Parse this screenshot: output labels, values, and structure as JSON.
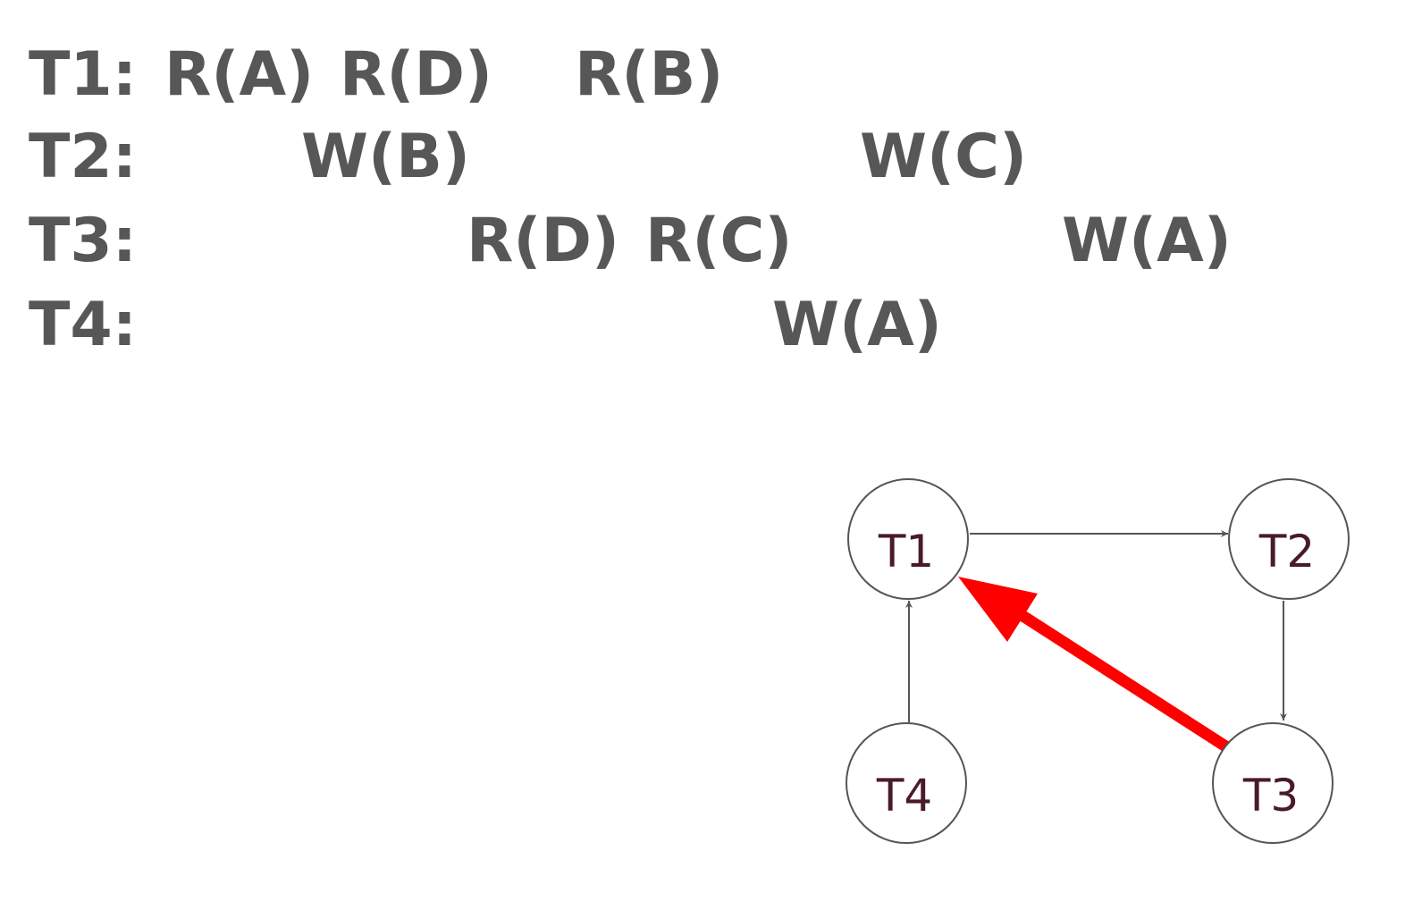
{
  "schedule": {
    "rows": [
      {
        "label": "T1:",
        "ops": [
          "R(A)",
          "R(D)",
          "R(B)"
        ]
      },
      {
        "label": "T2:",
        "ops": [
          "W(B)",
          "W(C)"
        ]
      },
      {
        "label": "T3:",
        "ops": [
          "R(D)",
          "R(C)",
          "W(A)"
        ]
      },
      {
        "label": "T4:",
        "ops": [
          "W(A)"
        ]
      }
    ]
  },
  "graph": {
    "nodes": [
      {
        "id": "T1",
        "label": "T1"
      },
      {
        "id": "T2",
        "label": "T2"
      },
      {
        "id": "T3",
        "label": "T3"
      },
      {
        "id": "T4",
        "label": "T4"
      }
    ],
    "edges": [
      {
        "from": "T1",
        "to": "T2",
        "highlighted": false
      },
      {
        "from": "T2",
        "to": "T3",
        "highlighted": false
      },
      {
        "from": "T4",
        "to": "T1",
        "highlighted": false
      },
      {
        "from": "T3",
        "to": "T1",
        "highlighted": true
      }
    ],
    "colors": {
      "edge": "#555555",
      "highlight": "#ff0000",
      "node_stroke": "#555555",
      "node_text": "#4a1a2a"
    }
  }
}
